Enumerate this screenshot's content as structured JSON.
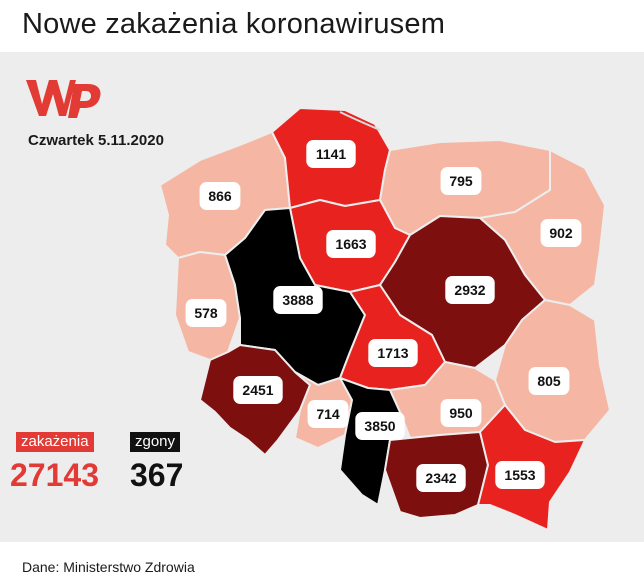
{
  "title": "Nowe zakażenia koronawirusem",
  "date": "Czwartek 5.11.2020",
  "source": "Dane: Ministerstwo Zdrowia",
  "logo": {
    "icon": "wp-logo"
  },
  "legend": {
    "infections_label": "zakażenia",
    "infections_value": "27143",
    "deaths_label": "zgony",
    "deaths_value": "367"
  },
  "colors": {
    "light": "#f5b7a3",
    "red": "#e8231f",
    "dark_red": "#7d0f0f",
    "black": "#000000",
    "accent": "#e23a34",
    "background": "#ededed"
  },
  "regions": [
    {
      "name": "zachodniopomorskie",
      "value": "866"
    },
    {
      "name": "pomorskie",
      "value": "1141"
    },
    {
      "name": "warmińsko-mazurskie",
      "value": "795"
    },
    {
      "name": "podlaskie",
      "value": "902"
    },
    {
      "name": "kujawsko-pomorskie",
      "value": "1663"
    },
    {
      "name": "lubuskie",
      "value": "578"
    },
    {
      "name": "wielkopolskie",
      "value": "3888"
    },
    {
      "name": "mazowieckie",
      "value": "2932"
    },
    {
      "name": "łódzkie",
      "value": "1713"
    },
    {
      "name": "lubelskie",
      "value": "805"
    },
    {
      "name": "dolnośląskie",
      "value": "2451"
    },
    {
      "name": "opolskie",
      "value": "714"
    },
    {
      "name": "śląskie",
      "value": "3850"
    },
    {
      "name": "świętokrzyskie",
      "value": "950"
    },
    {
      "name": "małopolskie",
      "value": "2342"
    },
    {
      "name": "podkarpackie",
      "value": "1553"
    }
  ]
}
